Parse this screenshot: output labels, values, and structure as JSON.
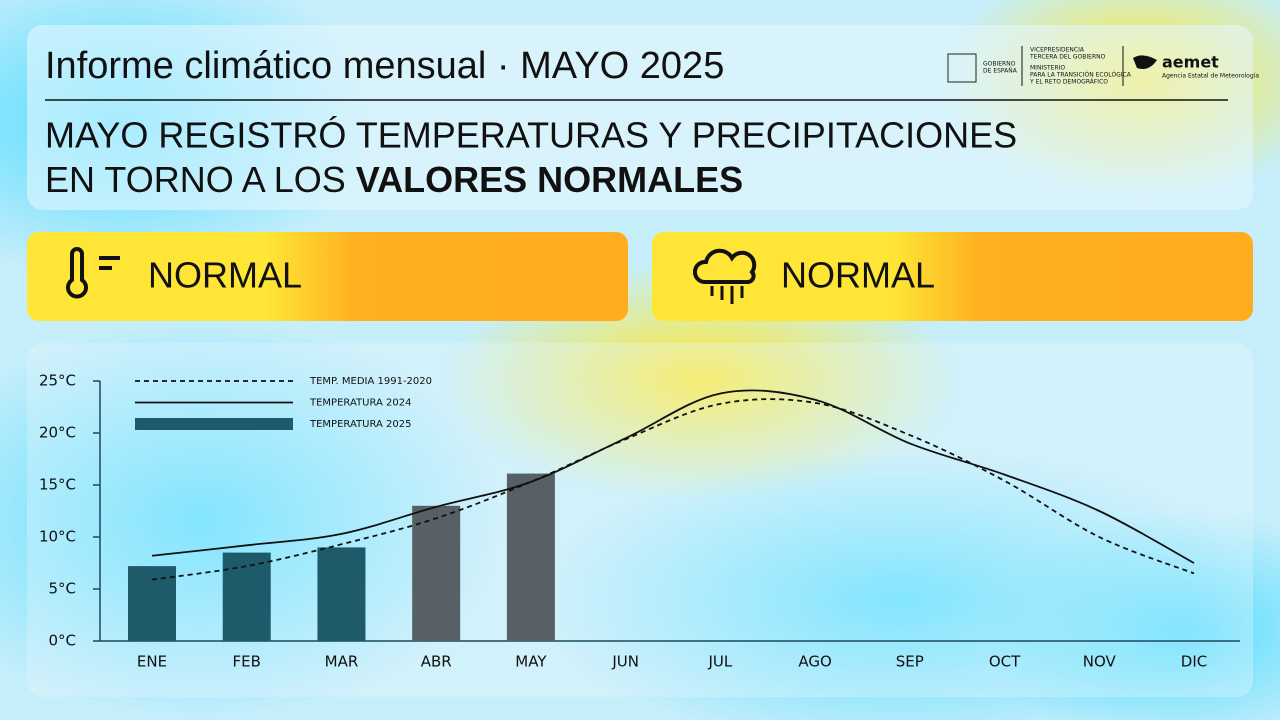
{
  "header": {
    "title": "Informe climático mensual · MAYO 2025",
    "headline_line1": "MAYO REGISTRÓ TEMPERATURAS Y PRECIPITACIONES",
    "headline_line2_plain": "EN TORNO A LOS ",
    "headline_line2_bold": "VALORES NORMALES",
    "gov_name": [
      "GOBIERNO",
      "DE ESPAÑA"
    ],
    "ministry": [
      "VICEPRESIDENCIA",
      "TERCERA DEL GOBIERNO",
      "MINISTERIO",
      "PARA LA TRANSICIÓN ECOLÓGICA",
      "Y EL RETO DEMOGRÁFICO"
    ],
    "brand": "aemet",
    "brand_sub": "Agencia Estatal de Meteorología"
  },
  "cards": {
    "temperature": "NORMAL",
    "precipitation": "NORMAL"
  },
  "chart_data": {
    "type": "bar",
    "categories": [
      "ENE",
      "FEB",
      "MAR",
      "ABR",
      "MAY",
      "JUN",
      "JUL",
      "AGO",
      "SEP",
      "OCT",
      "NOV",
      "DIC"
    ],
    "ylim": [
      0,
      25
    ],
    "yticks": [
      {
        "value": 0,
        "label": "0°C"
      },
      {
        "value": 5,
        "label": "5°C"
      },
      {
        "value": 10,
        "label": "10°C"
      },
      {
        "value": 15,
        "label": "15°C"
      },
      {
        "value": 20,
        "label": "20°C"
      },
      {
        "value": 25,
        "label": "25°C"
      }
    ],
    "series": [
      {
        "name": "TEMP. MEDIA 1991-2020",
        "type": "line",
        "dashed": true,
        "color": "#111111",
        "values": [
          5.9,
          7.2,
          9.3,
          11.8,
          15.3,
          19.4,
          22.8,
          22.9,
          19.8,
          15.4,
          10.0,
          6.5
        ]
      },
      {
        "name": "TEMPERATURA 2024",
        "type": "line",
        "dashed": false,
        "color": "#111111",
        "values": [
          8.2,
          9.2,
          10.3,
          12.9,
          15.3,
          19.5,
          23.8,
          23.2,
          19.0,
          16.0,
          12.5,
          7.5
        ]
      },
      {
        "name": "TEMPERATURA 2025",
        "type": "bar",
        "color": "#1f5a6a",
        "colors": [
          "#1f5a6a",
          "#1f5a6a",
          "#1f5a6a",
          "#576064",
          "#576064",
          null,
          null,
          null,
          null,
          null,
          null,
          null
        ],
        "values": [
          7.2,
          8.5,
          9.0,
          13.0,
          16.1,
          null,
          null,
          null,
          null,
          null,
          null,
          null
        ]
      }
    ]
  }
}
